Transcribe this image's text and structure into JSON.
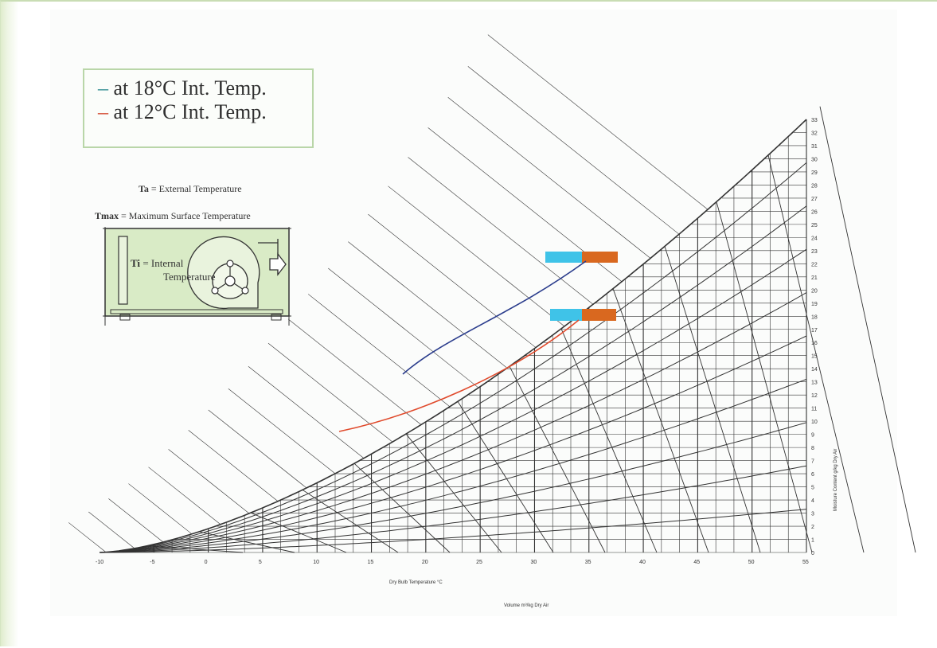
{
  "legend": {
    "item_18": {
      "dash": "–",
      "text": "at 18°C Int. Temp.",
      "color": "#2b8a8f"
    },
    "item_12": {
      "dash": "–",
      "text": "at 12°C Int. Temp.",
      "color": "#d2432a"
    }
  },
  "captions": {
    "ta_symbol": "Ta",
    "ta_text": " = External Temperature",
    "tmax_symbol": "Tmax",
    "tmax_text": " =  Maximum Surface Temperature",
    "ti_symbol": "Ti",
    "ti_text_line1": " = Internal",
    "ti_text_line2": "Temperature"
  },
  "chart": {
    "x_ticks": [
      "-10",
      "-5",
      "0",
      "5",
      "10",
      "15",
      "20",
      "25",
      "30",
      "35",
      "40",
      "45",
      "50",
      "55"
    ],
    "y_ticks_right": [
      "0",
      "1",
      "2",
      "3",
      "4",
      "5",
      "6",
      "7",
      "8",
      "9",
      "10",
      "11",
      "12",
      "13",
      "14",
      "15",
      "16",
      "17",
      "18",
      "19",
      "20",
      "21",
      "22",
      "23",
      "24",
      "25",
      "26",
      "27",
      "28",
      "29",
      "30",
      "31",
      "32",
      "33"
    ],
    "x_title": "Dry Bulb Temperature °C",
    "x_subtitle": "Volume m³/kg Dry Air",
    "y_title": "Moisture Content g/kg Dry Air",
    "colors": {
      "blue_curve": "#2a3c8c",
      "red_curve": "#e04a2c",
      "cyan_marker": "#3fc3e8",
      "orange_marker": "#d9681f",
      "grid": "#333333"
    }
  }
}
